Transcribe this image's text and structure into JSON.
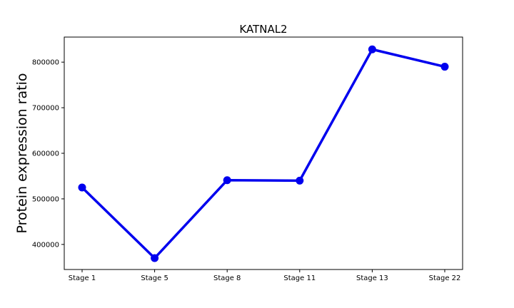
{
  "chart_data": {
    "type": "line",
    "title": "KATNAL2",
    "xlabel": "",
    "ylabel": "Protein expression ratio",
    "categories": [
      "Stage 1",
      "Stage 5",
      "Stage 8",
      "Stage 11",
      "Stage 13",
      "Stage 22"
    ],
    "series": [
      {
        "values": [
          525000,
          370000,
          541000,
          540000,
          828000,
          790000
        ],
        "color": "#0000ee"
      }
    ],
    "ylim": [
      345000,
      855000
    ],
    "yticks": [
      400000,
      500000,
      600000,
      700000,
      800000
    ],
    "ytick_labels": [
      "400000",
      "500000",
      "600000",
      "700000",
      "800000"
    ],
    "grid": false,
    "legend": "none"
  }
}
